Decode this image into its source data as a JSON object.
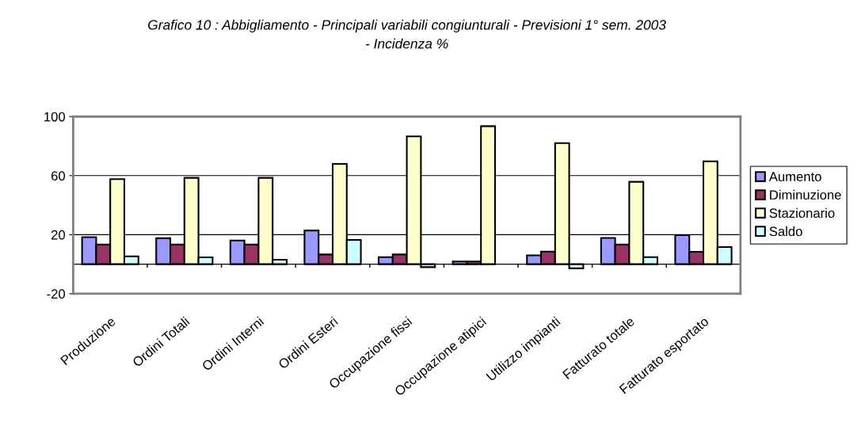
{
  "chart_data": {
    "type": "bar",
    "title": "Grafico 10 : Abbigliamento - Principali variabili congiunturali - Previsioni 1° sem. 2003\n- Incidenza %",
    "categories": [
      "Produzione",
      "Ordini Totali",
      "Ordini Interni",
      "Ordini Esteri",
      "Occupazione fissi",
      "Occupazione atipici",
      "Utilizzo impianti",
      "Fatturato totale",
      "Fatturato esportato"
    ],
    "series": [
      {
        "name": "Aumento",
        "color": "#9999ff",
        "values": [
          18.3,
          17.6,
          16,
          22.8,
          4.8,
          1.8,
          6,
          17.8,
          19.7
        ]
      },
      {
        "name": "Diminuzione",
        "color": "#993366",
        "values": [
          13.3,
          13.3,
          13.3,
          6.6,
          6.6,
          1.8,
          8.5,
          13.3,
          8.4
        ]
      },
      {
        "name": "Stazionario",
        "color": "#ffffcc",
        "values": [
          57.6,
          58.5,
          58.5,
          67.9,
          86.6,
          93.5,
          82,
          55.8,
          69.7
        ]
      },
      {
        "name": "Saldo",
        "color": "#ccffff",
        "values": [
          5.3,
          4.6,
          3,
          16.4,
          -2,
          null,
          -2.8,
          4.8,
          11.6
        ]
      }
    ],
    "ylim": [
      -20,
      100
    ],
    "yticks": [
      -20,
      20,
      60,
      100
    ],
    "grid": "y",
    "legend": "right"
  }
}
